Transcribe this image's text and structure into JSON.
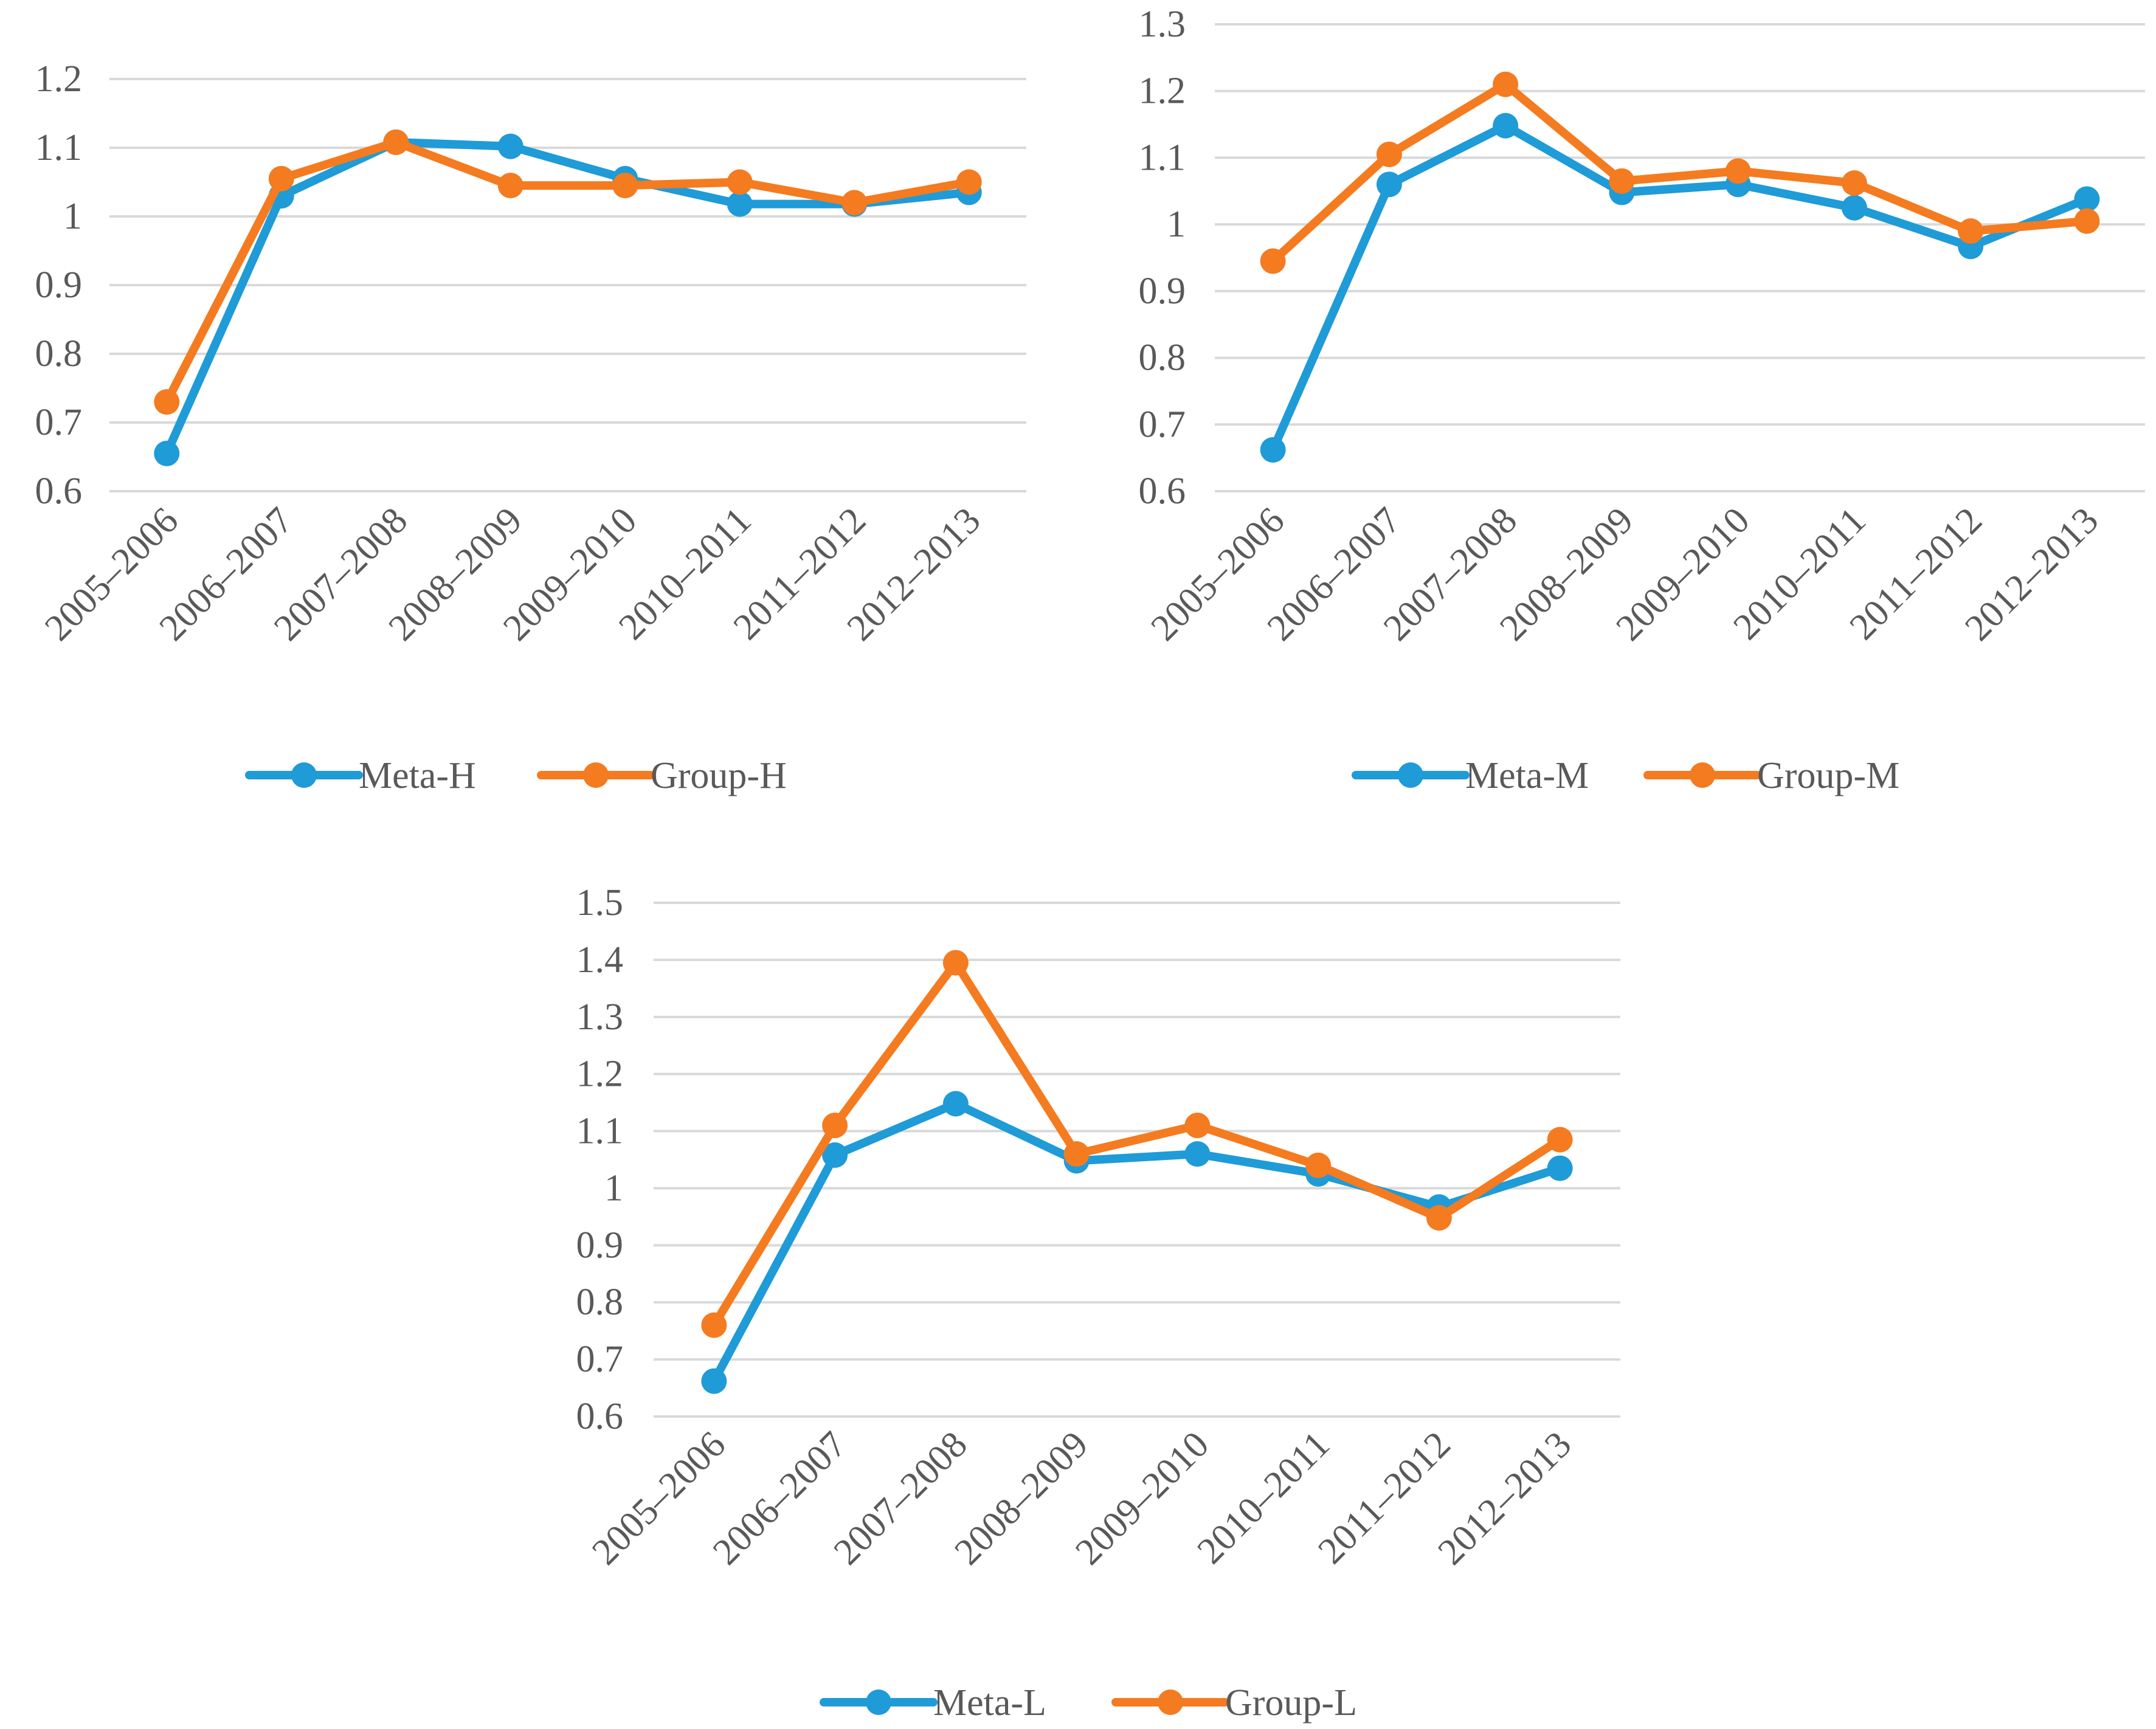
{
  "chart_data": [
    {
      "type": "line",
      "id": "H",
      "categories": [
        "2005–2006",
        "2006–2007",
        "2007–2008",
        "2008–2009",
        "2009–2010",
        "2010–2011",
        "2011–2012",
        "2012–2013"
      ],
      "ylim": [
        0.6,
        1.2
      ],
      "yticks": [
        "0.6",
        "0.7",
        "0.8",
        "0.9",
        "1",
        "1.1",
        "1.2"
      ],
      "series": [
        {
          "name": "Meta-H",
          "color": "#1f9bd7",
          "values": [
            0.655,
            1.03,
            1.108,
            1.102,
            1.055,
            1.018,
            1.018,
            1.035
          ]
        },
        {
          "name": "Group-H",
          "color": "#f47b20",
          "values": [
            0.73,
            1.055,
            1.108,
            1.045,
            1.045,
            1.05,
            1.02,
            1.05
          ]
        }
      ]
    },
    {
      "type": "line",
      "id": "M",
      "categories": [
        "2005–2006",
        "2006–2007",
        "2007–2008",
        "2008–2009",
        "2009–2010",
        "2010–2011",
        "2011–2012",
        "2012–2013"
      ],
      "ylim": [
        0.6,
        1.3
      ],
      "yticks": [
        "0.6",
        "0.7",
        "0.8",
        "0.9",
        "1",
        "1.1",
        "1.2",
        "1.3"
      ],
      "series": [
        {
          "name": "Meta-M",
          "color": "#1f9bd7",
          "values": [
            0.662,
            1.06,
            1.148,
            1.048,
            1.06,
            1.025,
            0.967,
            1.038
          ]
        },
        {
          "name": "Group-M",
          "color": "#f47b20",
          "values": [
            0.945,
            1.105,
            1.21,
            1.065,
            1.08,
            1.062,
            0.99,
            1.005
          ]
        }
      ]
    },
    {
      "type": "line",
      "id": "L",
      "categories": [
        "2005–2006",
        "2006–2007",
        "2007–2008",
        "2008–2009",
        "2009–2010",
        "2010–2011",
        "2011–2012",
        "2012–2013"
      ],
      "ylim": [
        0.6,
        1.5
      ],
      "yticks": [
        "0.6",
        "0.7",
        "0.8",
        "0.9",
        "1",
        "1.1",
        "1.2",
        "1.3",
        "1.4",
        "1.5"
      ],
      "series": [
        {
          "name": "Meta-L",
          "color": "#1f9bd7",
          "values": [
            0.662,
            1.058,
            1.148,
            1.048,
            1.06,
            1.025,
            0.967,
            1.035
          ]
        },
        {
          "name": "Group-L",
          "color": "#f47b20",
          "values": [
            0.76,
            1.11,
            1.395,
            1.06,
            1.11,
            1.04,
            0.948,
            1.085
          ]
        }
      ]
    }
  ]
}
